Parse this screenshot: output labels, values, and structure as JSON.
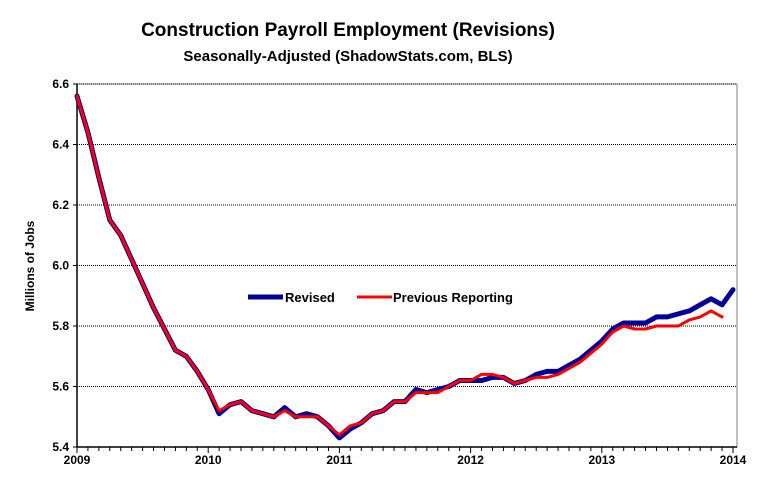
{
  "chart_data": {
    "type": "line",
    "title": "Construction Payroll Employment (Revisions)",
    "subtitle": "Seasonally-Adjusted (ShadowStats.com, BLS)",
    "xlabel": "",
    "ylabel": "Millions  of Jobs",
    "xlim": [
      2009,
      2014
    ],
    "ylim": [
      5.4,
      6.6
    ],
    "x_ticks": [
      "2009",
      "2010",
      "2011",
      "2012",
      "2013",
      "2014"
    ],
    "y_ticks": [
      "5.4",
      "5.6",
      "5.8",
      "6.0",
      "6.2",
      "6.4",
      "6.6"
    ],
    "grid": "horizontal",
    "legend_position": "center",
    "x_start": "2009-01",
    "x_frequency": "monthly",
    "series": [
      {
        "name": "Revised",
        "color": "#000099",
        "values": [
          6.56,
          6.44,
          6.29,
          6.15,
          6.1,
          6.02,
          5.94,
          5.86,
          5.79,
          5.72,
          5.7,
          5.65,
          5.59,
          5.51,
          5.54,
          5.55,
          5.52,
          5.51,
          5.5,
          5.53,
          5.5,
          5.51,
          5.5,
          5.47,
          5.43,
          5.46,
          5.48,
          5.51,
          5.52,
          5.55,
          5.55,
          5.59,
          5.58,
          5.59,
          5.6,
          5.62,
          5.62,
          5.62,
          5.63,
          5.63,
          5.61,
          5.62,
          5.64,
          5.65,
          5.65,
          5.67,
          5.69,
          5.72,
          5.75,
          5.79,
          5.81,
          5.81,
          5.81,
          5.83,
          5.83,
          5.84,
          5.85,
          5.87,
          5.89,
          5.87,
          5.92
        ]
      },
      {
        "name": "Previous Reporting",
        "color": "#ff0000",
        "values": [
          6.56,
          6.44,
          6.29,
          6.15,
          6.1,
          6.02,
          5.94,
          5.86,
          5.79,
          5.72,
          5.7,
          5.65,
          5.59,
          5.52,
          5.54,
          5.55,
          5.52,
          5.51,
          5.5,
          5.52,
          5.5,
          5.5,
          5.5,
          5.47,
          5.44,
          5.47,
          5.48,
          5.51,
          5.52,
          5.55,
          5.55,
          5.58,
          5.58,
          5.58,
          5.6,
          5.62,
          5.62,
          5.64,
          5.64,
          5.63,
          5.61,
          5.62,
          5.63,
          5.63,
          5.64,
          5.66,
          5.68,
          5.71,
          5.74,
          5.78,
          5.8,
          5.79,
          5.79,
          5.8,
          5.8,
          5.8,
          5.82,
          5.83,
          5.85,
          5.83
        ]
      }
    ]
  }
}
